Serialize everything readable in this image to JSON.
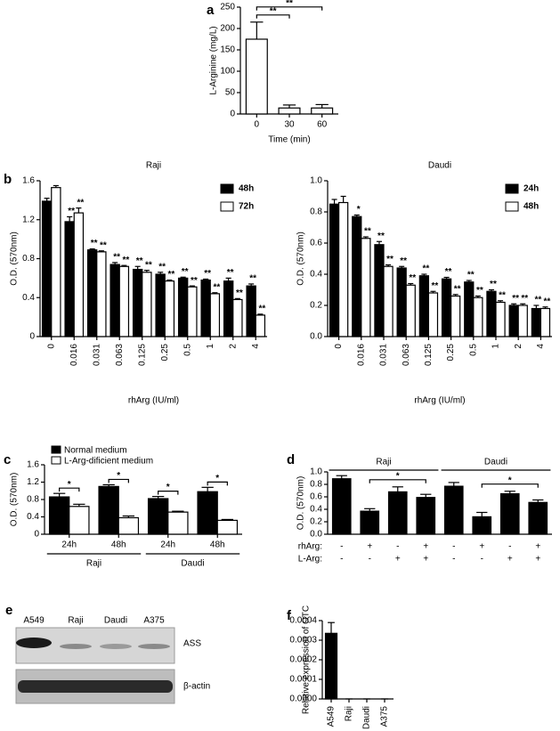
{
  "chart_data": [
    {
      "type": "bar",
      "panel": "a",
      "ylabel": "L-Arginine (mg/L)",
      "xlabel": "Time (min)",
      "categories": [
        "0",
        "30",
        "60"
      ],
      "series": [
        {
          "color": "#ffffff",
          "values": [
            175,
            14,
            14
          ],
          "errors": [
            40,
            7,
            8
          ]
        }
      ],
      "ylim": [
        0,
        250
      ],
      "yticks": [
        0,
        50,
        100,
        150,
        200,
        250
      ],
      "comparisons": [
        {
          "from": 0,
          "to": 1,
          "label": "**"
        },
        {
          "from": 0,
          "to": 2,
          "label": "**"
        }
      ]
    },
    {
      "type": "bar",
      "panel": "b",
      "title": "Raji",
      "ylabel": "O.D. (570nm)",
      "xlabel": "rhArg (IU/ml)",
      "categories": [
        "0",
        "0.016",
        "0.031",
        "0.063",
        "0.125",
        "0.25",
        "0.5",
        "1",
        "2",
        "4"
      ],
      "series": [
        {
          "name": "48h",
          "color": "#000000",
          "values": [
            1.39,
            1.18,
            0.89,
            0.74,
            0.69,
            0.64,
            0.6,
            0.58,
            0.57,
            0.52
          ],
          "errors": [
            0.03,
            0.05,
            0.01,
            0.02,
            0.03,
            0.02,
            0.01,
            0.01,
            0.03,
            0.02
          ],
          "labels": [
            null,
            "**",
            "**",
            "**",
            "**",
            "**",
            "**",
            "**",
            "**",
            "**"
          ]
        },
        {
          "name": "72h",
          "color": "#ffffff",
          "values": [
            1.53,
            1.27,
            0.87,
            0.72,
            0.66,
            0.57,
            0.51,
            0.44,
            0.38,
            0.22
          ],
          "errors": [
            0.02,
            0.05,
            0.01,
            0.01,
            0.02,
            0.01,
            0.01,
            0.01,
            0.01,
            0.01
          ],
          "labels": [
            null,
            "**",
            "**",
            "**",
            "**",
            "**",
            "**",
            "**",
            "**",
            "**"
          ]
        }
      ],
      "ylim": [
        0,
        1.6
      ],
      "yticks": [
        0,
        0.4,
        0.8,
        1.2,
        1.6
      ],
      "legend": "upper right"
    },
    {
      "type": "bar",
      "panel": null,
      "title": "Daudi",
      "ylabel": "O.D. (570nm)",
      "xlabel": "rhArg (IU/ml)",
      "categories": [
        "0",
        "0.016",
        "0.031",
        "0.063",
        "0.125",
        "0.25",
        "0.5",
        "1",
        "2",
        "4"
      ],
      "series": [
        {
          "name": "24h",
          "color": "#000000",
          "values": [
            0.85,
            0.77,
            0.59,
            0.44,
            0.39,
            0.37,
            0.35,
            0.29,
            0.2,
            0.18
          ],
          "errors": [
            0.03,
            0.01,
            0.02,
            0.01,
            0.01,
            0.01,
            0.01,
            0.01,
            0.01,
            0.02
          ],
          "labels": [
            null,
            "*",
            "**",
            "**",
            "**",
            "**",
            "**",
            "**",
            "**",
            "**"
          ]
        },
        {
          "name": "48h",
          "color": "#ffffff",
          "values": [
            0.86,
            0.63,
            0.45,
            0.33,
            0.28,
            0.26,
            0.25,
            0.22,
            0.2,
            0.18
          ],
          "errors": [
            0.04,
            0.01,
            0.01,
            0.01,
            0.01,
            0.01,
            0.01,
            0.01,
            0.01,
            0.01
          ],
          "labels": [
            null,
            "**",
            "**",
            "**",
            "**",
            "**",
            "**",
            "**",
            "**",
            "**"
          ]
        }
      ],
      "ylim": [
        0,
        1.0
      ],
      "yticks": [
        {
          "value": 0,
          "label": "0.0"
        },
        0.2,
        0.4,
        0.6,
        0.8,
        {
          "value": 1,
          "label": "1.0"
        }
      ],
      "legend": "upper right"
    },
    {
      "type": "bar",
      "panel": "c",
      "ylabel": "O.D. (570nm)",
      "categories": [
        "24h",
        "48h",
        "24h",
        "48h"
      ],
      "groups": [
        {
          "label": "Raji",
          "categories": [
            0,
            1
          ]
        },
        {
          "label": "Daudi",
          "categories": [
            2,
            3
          ]
        }
      ],
      "series": [
        {
          "name": "Normal medium",
          "color": "#000000",
          "values": [
            0.86,
            1.1,
            0.82,
            0.98
          ],
          "errors": [
            0.08,
            0.04,
            0.05,
            0.1
          ]
        },
        {
          "name": "L-Arg-dificient medium",
          "color": "#ffffff",
          "values": [
            0.64,
            0.38,
            0.51,
            0.32
          ],
          "errors": [
            0.05,
            0.04,
            0.02,
            0.02
          ]
        }
      ],
      "ylim": [
        0,
        1.6
      ],
      "yticks": [
        0,
        0.4,
        0.8,
        1.2,
        1.6
      ],
      "legend": "upper left",
      "comparisons": [
        {
          "category": 0,
          "label": "*"
        },
        {
          "category": 1,
          "label": "*"
        },
        {
          "category": 2,
          "label": "*"
        },
        {
          "category": 3,
          "label": "*"
        }
      ]
    },
    {
      "type": "bar",
      "panel": "d",
      "ylabel": "O.D. (570nm)",
      "categories": [
        null,
        null,
        null,
        null,
        null,
        null,
        null,
        null
      ],
      "groups": [
        {
          "label": "Raji",
          "categories": [
            0,
            3
          ]
        },
        {
          "label": "Daudi",
          "categories": [
            4,
            7
          ]
        }
      ],
      "rows": [
        {
          "name": "rhArg:",
          "values": [
            "-",
            "+",
            "-",
            "+",
            "-",
            "+",
            "-",
            "+"
          ]
        },
        {
          "name": "L-Arg:",
          "values": [
            "-",
            "-",
            "+",
            "+",
            "-",
            "-",
            "+",
            "+"
          ]
        }
      ],
      "series": [
        {
          "color": "#000000",
          "values": [
            0.89,
            0.37,
            0.68,
            0.59,
            0.77,
            0.28,
            0.65,
            0.51
          ],
          "errors": [
            0.05,
            0.04,
            0.08,
            0.05,
            0.06,
            0.07,
            0.04,
            0.04
          ]
        }
      ],
      "ylim": [
        0,
        1.0
      ],
      "yticks": [
        {
          "value": 0,
          "label": "0.0"
        },
        0.2,
        0.4,
        0.6,
        0.8,
        {
          "value": 1,
          "label": "1.0"
        }
      ],
      "comparisons": [
        {
          "from": 1,
          "to": 3,
          "label": "*"
        },
        {
          "from": 5,
          "to": 7,
          "label": "*"
        }
      ]
    },
    {
      "type": "bar",
      "panel": "f",
      "ylabel": "Relative expression of OTC",
      "categories": [
        "A549",
        "Raji",
        "Daudi",
        "A375"
      ],
      "series": [
        {
          "color": "#000000",
          "values": [
            0.000335,
            0,
            0,
            0
          ],
          "errors": [
            5.5e-05,
            0,
            0,
            0
          ]
        }
      ],
      "ylim": [
        0,
        0.0004
      ],
      "yticks": [
        {
          "value": 0,
          "label": "0.0000"
        },
        {
          "value": 0.0001,
          "label": "0.0001"
        },
        {
          "value": 0.0002,
          "label": "0.0002"
        },
        {
          "value": 0.0003,
          "label": "0.0003"
        },
        {
          "value": 0.0004,
          "label": "0.0004"
        }
      ]
    }
  ],
  "blot": {
    "panel": "e",
    "lanes": [
      "A549",
      "Raji",
      "Daudi",
      "A375"
    ],
    "bands": [
      "ASS",
      "β-actin"
    ]
  }
}
